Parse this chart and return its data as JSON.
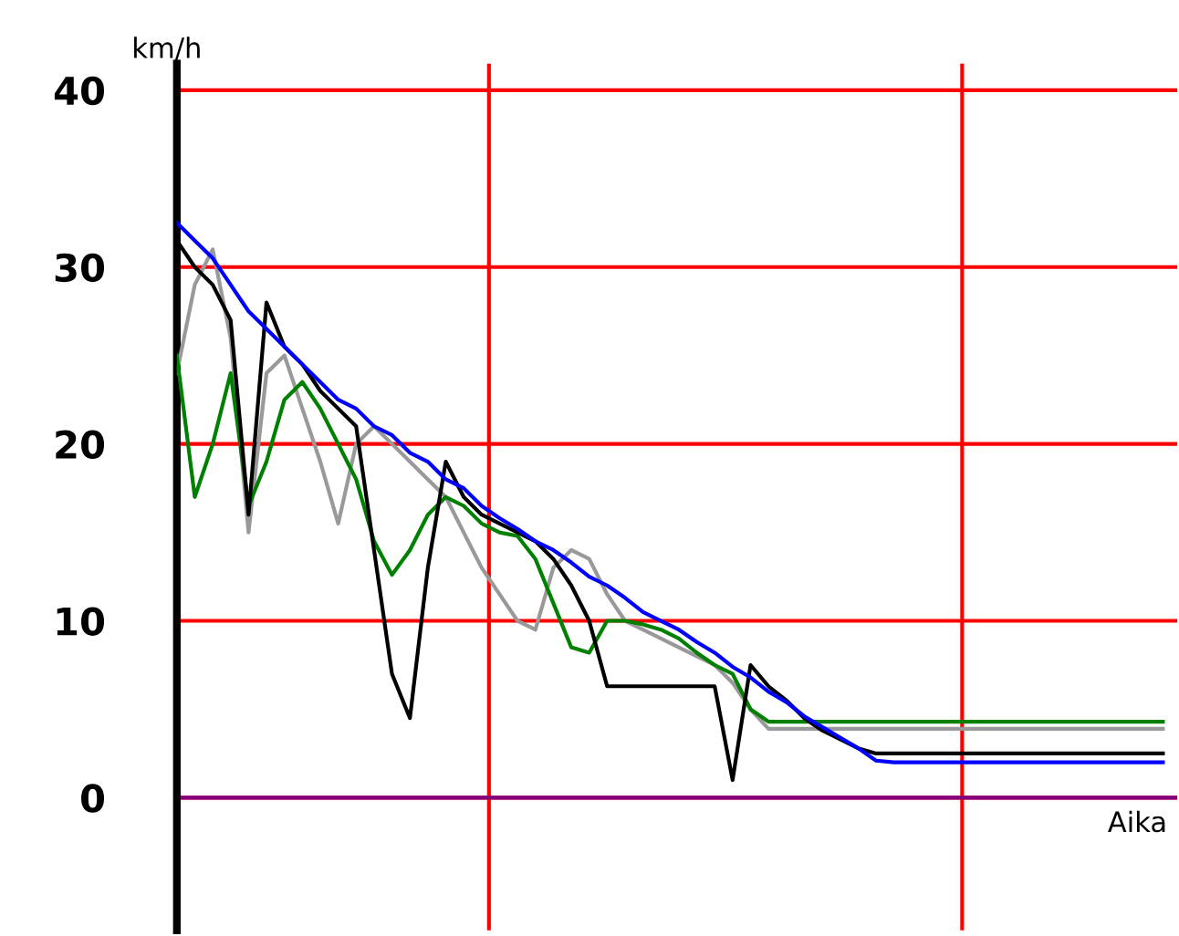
{
  "chart_data": {
    "type": "line",
    "ylabel": "km/h",
    "xlabel": "Aika",
    "categories": [
      null,
      null,
      null,
      null,
      null,
      null,
      null,
      null,
      null,
      null,
      null,
      null,
      null,
      null,
      null,
      null,
      null,
      null,
      null,
      null,
      null,
      null,
      null,
      null,
      null,
      null,
      null,
      null,
      null,
      null,
      null,
      null,
      null,
      null,
      null,
      null,
      null,
      null,
      null,
      null,
      null,
      null,
      null,
      null,
      null,
      null,
      null,
      null,
      null,
      null,
      null,
      null,
      null,
      null,
      null,
      null
    ],
    "series": [
      {
        "color": "#999999",
        "values": [
          24,
          29,
          31,
          26,
          15,
          24,
          25,
          22,
          19,
          15.5,
          20,
          21,
          20,
          19,
          18,
          17,
          15,
          13,
          11.5,
          10,
          9.5,
          13,
          14,
          13.5,
          11.5,
          10,
          9.5,
          9,
          8.5,
          8,
          7.5,
          6.5,
          5,
          3.9,
          3.9,
          3.9,
          3.9,
          3.9,
          3.9,
          3.9,
          3.9,
          3.9,
          3.9,
          3.9,
          3.9,
          3.9,
          3.9,
          3.9,
          3.9,
          3.9,
          3.9,
          3.9,
          3.9,
          3.9,
          3.9,
          3.9
        ]
      },
      {
        "color": "#008000",
        "values": [
          25,
          17,
          20,
          24,
          16.5,
          19,
          22.5,
          23.5,
          22,
          20,
          18,
          14.5,
          12.6,
          14,
          16,
          17,
          16.5,
          15.5,
          15,
          14.8,
          13.5,
          11,
          8.5,
          8.2,
          10,
          10,
          9.8,
          9.5,
          9,
          8.2,
          7.5,
          7,
          5,
          4.3,
          4.3,
          4.3,
          4.3,
          4.3,
          4.3,
          4.3,
          4.3,
          4.3,
          4.3,
          4.3,
          4.3,
          4.3,
          4.3,
          4.3,
          4.3,
          4.3,
          4.3,
          4.3,
          4.3,
          4.3,
          4.3,
          4.3
        ]
      },
      {
        "color": "#000000",
        "values": [
          31.5,
          30,
          29,
          27,
          16,
          28,
          25.5,
          24.5,
          23,
          22,
          21,
          14,
          7,
          4.5,
          13,
          19,
          17,
          16,
          15.5,
          15,
          14.5,
          13.5,
          12,
          10,
          6.3,
          6.3,
          6.3,
          6.3,
          6.3,
          6.3,
          6.3,
          1,
          7.5,
          6.3,
          5.5,
          4.5,
          3.8,
          3.3,
          2.8,
          2.5,
          2.5,
          2.5,
          2.5,
          2.5,
          2.5,
          2.5,
          2.5,
          2.5,
          2.5,
          2.5,
          2.5,
          2.5,
          2.5,
          2.5,
          2.5,
          2.5
        ]
      },
      {
        "color": "#0000ff",
        "values": [
          32.5,
          31.5,
          30.5,
          29,
          27.5,
          26.5,
          25.5,
          24.5,
          23.5,
          22.5,
          22,
          21,
          20.5,
          19.5,
          19,
          18,
          17.5,
          16.5,
          15.8,
          15.2,
          14.5,
          14,
          13.3,
          12.5,
          12,
          11.3,
          10.5,
          10,
          9.5,
          8.8,
          8.2,
          7.4,
          6.8,
          6,
          5.4,
          4.6,
          4,
          3.4,
          2.8,
          2.1,
          2,
          2,
          2,
          2,
          2,
          2,
          2,
          2,
          2,
          2,
          2,
          2,
          2,
          2,
          2,
          2
        ]
      }
    ],
    "ylim": [
      -7.5,
      41.5
    ],
    "yticks": [
      0,
      10,
      20,
      30,
      40
    ],
    "grid": "y",
    "tick_labels": "y",
    "legend": false,
    "ref_lines": [
      {
        "axis": "y",
        "value": 0,
        "color": "#800080"
      }
    ]
  }
}
